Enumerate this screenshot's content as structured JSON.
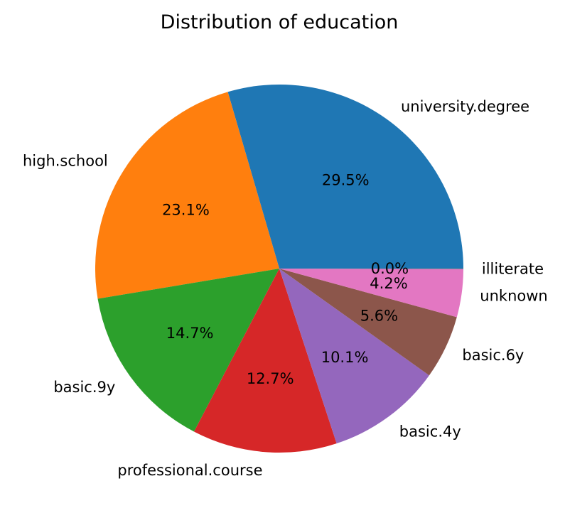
{
  "chart_data": {
    "type": "pie",
    "title": "Distribution of education",
    "start_angle_deg": 0,
    "direction": "counterclockwise",
    "slices": [
      {
        "label": "university.degree",
        "value": 29.5,
        "pct_text": "29.5%",
        "color": "#1f77b4"
      },
      {
        "label": "high.school",
        "value": 23.1,
        "pct_text": "23.1%",
        "color": "#ff7f0e"
      },
      {
        "label": "basic.9y",
        "value": 14.7,
        "pct_text": "14.7%",
        "color": "#2ca02c"
      },
      {
        "label": "professional.course",
        "value": 12.7,
        "pct_text": "12.7%",
        "color": "#d62728"
      },
      {
        "label": "basic.4y",
        "value": 10.1,
        "pct_text": "10.1%",
        "color": "#9467bd"
      },
      {
        "label": "basic.6y",
        "value": 5.6,
        "pct_text": "5.6%",
        "color": "#8c564b"
      },
      {
        "label": "unknown",
        "value": 4.2,
        "pct_text": "4.2%",
        "color": "#e377c2"
      },
      {
        "label": "illiterate",
        "value": 0.05,
        "pct_text": "0.0%",
        "color": "#7f7f7f"
      }
    ]
  }
}
